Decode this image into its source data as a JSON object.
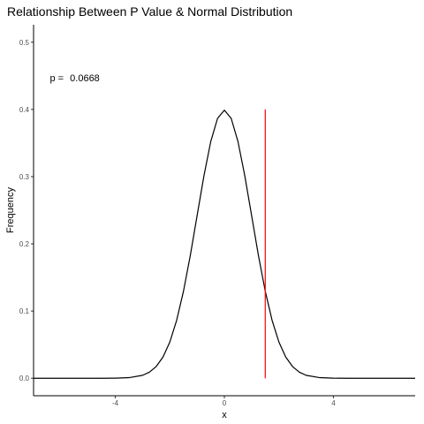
{
  "chart_data": {
    "type": "line",
    "title": "Relationship Between P Value & Normal Distribution",
    "xlabel": "x",
    "ylabel": "Frequency",
    "xlim": [
      -7.0,
      7.0
    ],
    "ylim": [
      -0.026,
      0.526
    ],
    "x_ticks": [
      -4,
      0,
      4
    ],
    "x_tick_labels": [
      "-4",
      "0",
      "4"
    ],
    "y_ticks": [
      0.0,
      0.1,
      0.2,
      0.3,
      0.4,
      0.5
    ],
    "y_tick_labels": [
      "0.0",
      "0.1",
      "0.2",
      "0.3",
      "0.4",
      "0.5"
    ],
    "grid": false,
    "legend": "none",
    "series": [
      {
        "values": {
          "x": [
            -7,
            -6,
            -5,
            -4.5,
            -4,
            -3.5,
            -3,
            -2.75,
            -2.5,
            -2.25,
            -2,
            -1.75,
            -1.5,
            -1.25,
            -1,
            -0.75,
            -0.5,
            -0.25,
            0,
            0.25,
            0.5,
            0.75,
            1,
            1.25,
            1.5,
            1.75,
            2,
            2.25,
            2.5,
            2.75,
            3,
            3.5,
            4,
            4.5,
            5,
            6,
            7
          ],
          "y": [
            0.0,
            0.0,
            0.0,
            0.0,
            0.0001,
            0.0009,
            0.0044,
            0.0091,
            0.0175,
            0.0317,
            0.054,
            0.0863,
            0.1295,
            0.1826,
            0.242,
            0.3011,
            0.3521,
            0.3867,
            0.3989,
            0.3867,
            0.3521,
            0.3011,
            0.242,
            0.1826,
            0.1295,
            0.0863,
            0.054,
            0.0317,
            0.0175,
            0.0091,
            0.0044,
            0.0009,
            0.0001,
            0.0,
            0.0,
            0.0,
            0.0
          ]
        },
        "color": "#000000"
      }
    ],
    "vline": {
      "x": 1.5,
      "y_from": 0.0,
      "y_to": 0.4,
      "color": "#ff0000"
    },
    "annotations": [
      {
        "label": "p = ",
        "value": "0.0668",
        "x": -6.4,
        "y": 0.447
      }
    ]
  }
}
